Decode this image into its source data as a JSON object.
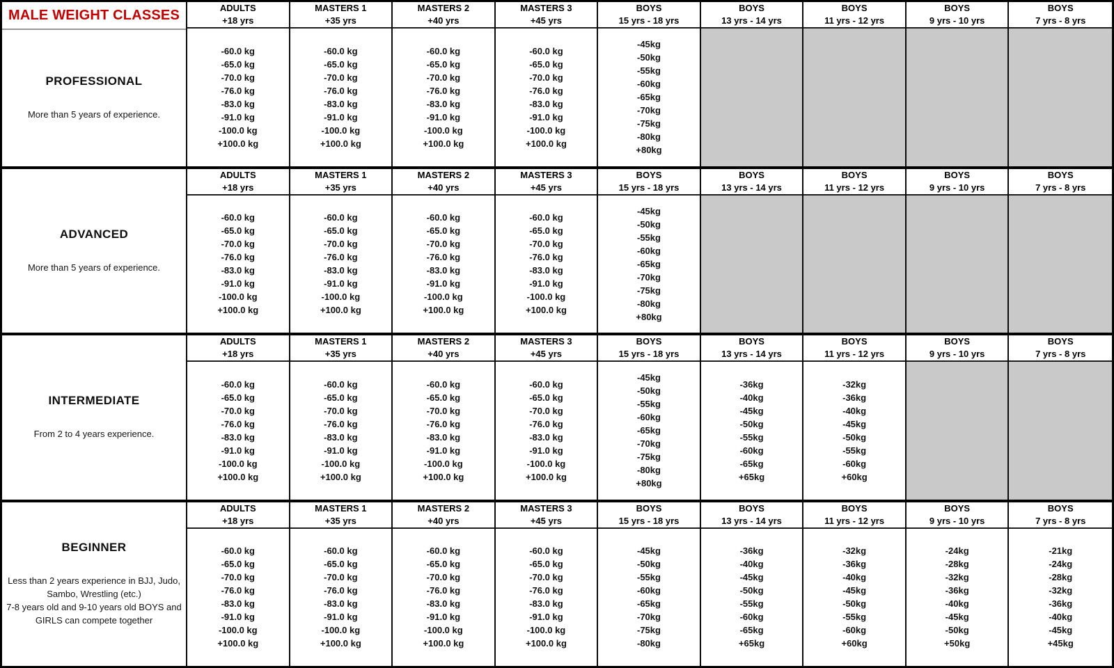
{
  "title": "MALE WEIGHT CLASSES",
  "colors": {
    "title_red": "#c00000",
    "disabled_gray": "#c9c9c9",
    "border_black": "#000000"
  },
  "age_groups": [
    {
      "group": "ADULTS",
      "age": "+18 yrs"
    },
    {
      "group": "MASTERS 1",
      "age": "+35 yrs"
    },
    {
      "group": "MASTERS 2",
      "age": "+40 yrs"
    },
    {
      "group": "MASTERS 3",
      "age": "+45 yrs"
    },
    {
      "group": "BOYS",
      "age": "15 yrs - 18 yrs"
    },
    {
      "group": "BOYS",
      "age": "13 yrs - 14 yrs"
    },
    {
      "group": "BOYS",
      "age": "11 yrs - 12 yrs"
    },
    {
      "group": "BOYS",
      "age": "9 yrs - 10 yrs"
    },
    {
      "group": "BOYS",
      "age": "7 yrs - 8 yrs"
    }
  ],
  "sections": [
    {
      "id": "professional",
      "name": "PROFESSIONAL",
      "description": [
        "More than 5 years of experience."
      ],
      "columns": [
        {
          "values": [
            "-60.0 kg",
            "-65.0 kg",
            "-70.0 kg",
            "-76.0 kg",
            "-83.0 kg",
            "-91.0 kg",
            "-100.0 kg",
            "+100.0 kg"
          ]
        },
        {
          "values": [
            "-60.0 kg",
            "-65.0 kg",
            "-70.0 kg",
            "-76.0 kg",
            "-83.0 kg",
            "-91.0 kg",
            "-100.0 kg",
            "+100.0 kg"
          ]
        },
        {
          "values": [
            "-60.0 kg",
            "-65.0 kg",
            "-70.0 kg",
            "-76.0 kg",
            "-83.0 kg",
            "-91.0 kg",
            "-100.0 kg",
            "+100.0 kg"
          ]
        },
        {
          "values": [
            "-60.0 kg",
            "-65.0 kg",
            "-70.0 kg",
            "-76.0 kg",
            "-83.0 kg",
            "-91.0 kg",
            "-100.0 kg",
            "+100.0 kg"
          ]
        },
        {
          "values": [
            "-45kg",
            "-50kg",
            "-55kg",
            "-60kg",
            "-65kg",
            "-70kg",
            "-75kg",
            "-80kg",
            "+80kg"
          ]
        },
        {
          "disabled": true
        },
        {
          "disabled": true
        },
        {
          "disabled": true
        },
        {
          "disabled": true
        }
      ]
    },
    {
      "id": "advanced",
      "name": "ADVANCED",
      "description": [
        "More than 5 years of experience."
      ],
      "columns": [
        {
          "values": [
            "-60.0 kg",
            "-65.0 kg",
            "-70.0 kg",
            "-76.0 kg",
            "-83.0 kg",
            "-91.0 kg",
            "-100.0 kg",
            "+100.0 kg"
          ]
        },
        {
          "values": [
            "-60.0 kg",
            "-65.0 kg",
            "-70.0 kg",
            "-76.0 kg",
            "-83.0 kg",
            "-91.0 kg",
            "-100.0 kg",
            "+100.0 kg"
          ]
        },
        {
          "values": [
            "-60.0 kg",
            "-65.0 kg",
            "-70.0 kg",
            "-76.0 kg",
            "-83.0 kg",
            "-91.0 kg",
            "-100.0 kg",
            "+100.0 kg"
          ]
        },
        {
          "values": [
            "-60.0 kg",
            "-65.0 kg",
            "-70.0 kg",
            "-76.0 kg",
            "-83.0 kg",
            "-91.0 kg",
            "-100.0 kg",
            "+100.0 kg"
          ]
        },
        {
          "values": [
            "-45kg",
            "-50kg",
            "-55kg",
            "-60kg",
            "-65kg",
            "-70kg",
            "-75kg",
            "-80kg",
            "+80kg"
          ]
        },
        {
          "disabled": true
        },
        {
          "disabled": true
        },
        {
          "disabled": true
        },
        {
          "disabled": true
        }
      ]
    },
    {
      "id": "intermediate",
      "name": "INTERMEDIATE",
      "description": [
        "From 2 to 4 years experience."
      ],
      "columns": [
        {
          "values": [
            "-60.0 kg",
            "-65.0 kg",
            "-70.0 kg",
            "-76.0 kg",
            "-83.0 kg",
            "-91.0 kg",
            "-100.0 kg",
            "+100.0 kg"
          ]
        },
        {
          "values": [
            "-60.0 kg",
            "-65.0 kg",
            "-70.0 kg",
            "-76.0 kg",
            "-83.0 kg",
            "-91.0 kg",
            "-100.0 kg",
            "+100.0 kg"
          ]
        },
        {
          "values": [
            "-60.0 kg",
            "-65.0 kg",
            "-70.0 kg",
            "-76.0 kg",
            "-83.0 kg",
            "-91.0 kg",
            "-100.0 kg",
            "+100.0 kg"
          ]
        },
        {
          "values": [
            "-60.0 kg",
            "-65.0 kg",
            "-70.0 kg",
            "-76.0 kg",
            "-83.0 kg",
            "-91.0 kg",
            "-100.0 kg",
            "+100.0 kg"
          ]
        },
        {
          "values": [
            "-45kg",
            "-50kg",
            "-55kg",
            "-60kg",
            "-65kg",
            "-70kg",
            "-75kg",
            "-80kg",
            "+80kg"
          ]
        },
        {
          "values": [
            "-36kg",
            "-40kg",
            "-45kg",
            "-50kg",
            "-55kg",
            "-60kg",
            "-65kg",
            "+65kg"
          ]
        },
        {
          "values": [
            "-32kg",
            "-36kg",
            "-40kg",
            "-45kg",
            "-50kg",
            "-55kg",
            "-60kg",
            "+60kg"
          ]
        },
        {
          "disabled": true
        },
        {
          "disabled": true
        }
      ]
    },
    {
      "id": "beginner",
      "name": "BEGINNER",
      "description": [
        "Less than 2 years experience in BJJ, Judo, Sambo, Wrestling (etc.)",
        "7-8 years old and 9-10 years old BOYS and GIRLS can compete together"
      ],
      "columns": [
        {
          "values": [
            "-60.0 kg",
            "-65.0 kg",
            "-70.0 kg",
            "-76.0 kg",
            "-83.0 kg",
            "-91.0 kg",
            "-100.0 kg",
            "+100.0 kg"
          ]
        },
        {
          "values": [
            "-60.0 kg",
            "-65.0 kg",
            "-70.0 kg",
            "-76.0 kg",
            "-83.0 kg",
            "-91.0 kg",
            "-100.0 kg",
            "+100.0 kg"
          ]
        },
        {
          "values": [
            "-60.0 kg",
            "-65.0 kg",
            "-70.0 kg",
            "-76.0 kg",
            "-83.0 kg",
            "-91.0 kg",
            "-100.0 kg",
            "+100.0 kg"
          ]
        },
        {
          "values": [
            "-60.0 kg",
            "-65.0 kg",
            "-70.0 kg",
            "-76.0 kg",
            "-83.0 kg",
            "-91.0 kg",
            "-100.0 kg",
            "+100.0 kg"
          ]
        },
        {
          "values": [
            "-45kg",
            "-50kg",
            "-55kg",
            "-60kg",
            "-65kg",
            "-70kg",
            "-75kg",
            "-80kg"
          ]
        },
        {
          "values": [
            "-36kg",
            "-40kg",
            "-45kg",
            "-50kg",
            "-55kg",
            "-60kg",
            "-65kg",
            "+65kg"
          ]
        },
        {
          "values": [
            "-32kg",
            "-36kg",
            "-40kg",
            "-45kg",
            "-50kg",
            "-55kg",
            "-60kg",
            "+60kg"
          ]
        },
        {
          "values": [
            "-24kg",
            "-28kg",
            "-32kg",
            "-36kg",
            "-40kg",
            "-45kg",
            "-50kg",
            "+50kg"
          ]
        },
        {
          "values": [
            "-21kg",
            "-24kg",
            "-28kg",
            "-32kg",
            "-36kg",
            "-40kg",
            "-45kg",
            "+45kg"
          ]
        }
      ]
    }
  ]
}
